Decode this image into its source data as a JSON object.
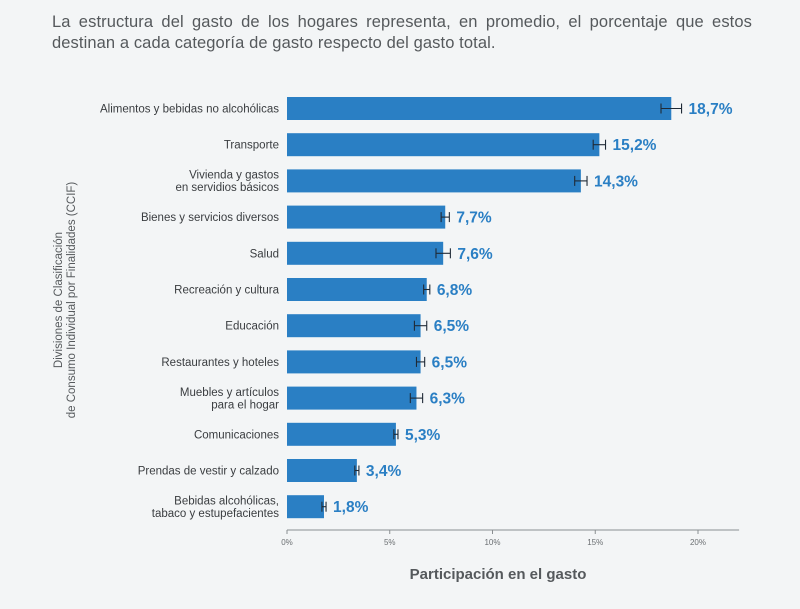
{
  "intro_text": "La estructura del gasto de los hogares representa, en promedio, el porcentaje que estos destinan a cada categoría de gasto respecto del gasto total.",
  "chart_data": {
    "type": "bar",
    "orientation": "horizontal",
    "categories": [
      [
        "Alimentos y bebidas no alcohólicas"
      ],
      [
        "Transporte"
      ],
      [
        "Vivienda y gastos",
        "en servidios básicos"
      ],
      [
        "Bienes y servicios diversos"
      ],
      [
        "Salud"
      ],
      [
        "Recreación y cultura"
      ],
      [
        "Educación"
      ],
      [
        "Restaurantes y hoteles"
      ],
      [
        "Muebles y artículos",
        "para el hogar"
      ],
      [
        "Comunicaciones"
      ],
      [
        "Prendas de vestir y calzado"
      ],
      [
        "Bebidas alcohólicas,",
        "tabaco y estupefacientes"
      ]
    ],
    "values": [
      18.7,
      15.2,
      14.3,
      7.7,
      7.6,
      6.8,
      6.5,
      6.5,
      6.3,
      5.3,
      3.4,
      1.8
    ],
    "value_labels": [
      "18,7%",
      "15,2%",
      "14,3%",
      "7,7%",
      "7,6%",
      "6,8%",
      "6,5%",
      "6,5%",
      "6,3%",
      "5,3%",
      "3,4%",
      "1,8%"
    ],
    "error_bars": [
      0.5,
      0.3,
      0.3,
      0.2,
      0.35,
      0.15,
      0.3,
      0.2,
      0.3,
      0.1,
      0.1,
      0.1
    ],
    "xlim": [
      0,
      22
    ],
    "xticks": [
      0,
      5,
      10,
      15,
      20
    ],
    "xtick_labels": [
      "0%",
      "5%",
      "10%",
      "15%",
      "20%"
    ],
    "xlabel": "Participación en el gasto",
    "ylabel": [
      "Divisiones de Clasificación",
      "de Consumo Individual por Finalidades (CCIF)"
    ],
    "bar_color": "#2a7fc4",
    "grid": false
  }
}
